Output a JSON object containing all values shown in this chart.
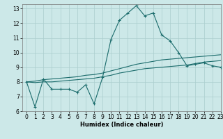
{
  "xlabel": "Humidex (Indice chaleur)",
  "xlim": [
    -0.5,
    23
  ],
  "ylim": [
    6,
    13.3
  ],
  "xticks": [
    0,
    1,
    2,
    3,
    4,
    5,
    6,
    7,
    8,
    9,
    10,
    11,
    12,
    13,
    14,
    15,
    16,
    17,
    18,
    19,
    20,
    21,
    22,
    23
  ],
  "yticks": [
    6,
    7,
    8,
    9,
    10,
    11,
    12,
    13
  ],
  "bg_color": "#cce8e8",
  "grid_color": "#aacece",
  "line_color": "#1a6b6b",
  "line1_x": [
    0,
    1,
    2,
    3,
    4,
    5,
    6,
    7,
    8,
    9,
    10,
    11,
    12,
    13,
    14,
    15,
    16,
    17,
    18,
    19,
    20,
    21,
    22,
    23
  ],
  "line1_y": [
    8.0,
    6.3,
    8.2,
    7.5,
    7.5,
    7.5,
    7.3,
    7.8,
    6.5,
    8.3,
    10.9,
    12.2,
    12.7,
    13.2,
    12.5,
    12.7,
    11.2,
    10.8,
    10.0,
    9.1,
    9.2,
    9.3,
    9.1,
    9.0
  ],
  "line2_x": [
    0,
    1,
    2,
    3,
    4,
    5,
    6,
    7,
    8,
    9,
    10,
    11,
    12,
    13,
    14,
    15,
    16,
    17,
    18,
    19,
    20,
    21,
    22,
    23
  ],
  "line2_y": [
    8.0,
    8.05,
    8.15,
    8.2,
    8.25,
    8.3,
    8.35,
    8.45,
    8.5,
    8.6,
    8.75,
    8.9,
    9.05,
    9.2,
    9.3,
    9.4,
    9.5,
    9.55,
    9.6,
    9.65,
    9.7,
    9.75,
    9.8,
    9.85
  ],
  "line3_x": [
    0,
    1,
    2,
    3,
    4,
    5,
    6,
    7,
    8,
    9,
    10,
    11,
    12,
    13,
    14,
    15,
    16,
    17,
    18,
    19,
    20,
    21,
    22,
    23
  ],
  "line3_y": [
    8.0,
    7.95,
    8.0,
    8.0,
    8.05,
    8.1,
    8.15,
    8.2,
    8.25,
    8.35,
    8.45,
    8.6,
    8.7,
    8.8,
    8.9,
    8.95,
    9.0,
    9.05,
    9.1,
    9.15,
    9.25,
    9.35,
    9.4,
    9.45
  ],
  "xlabel_fontsize": 6.0,
  "tick_fontsize": 5.5,
  "marker": "+"
}
